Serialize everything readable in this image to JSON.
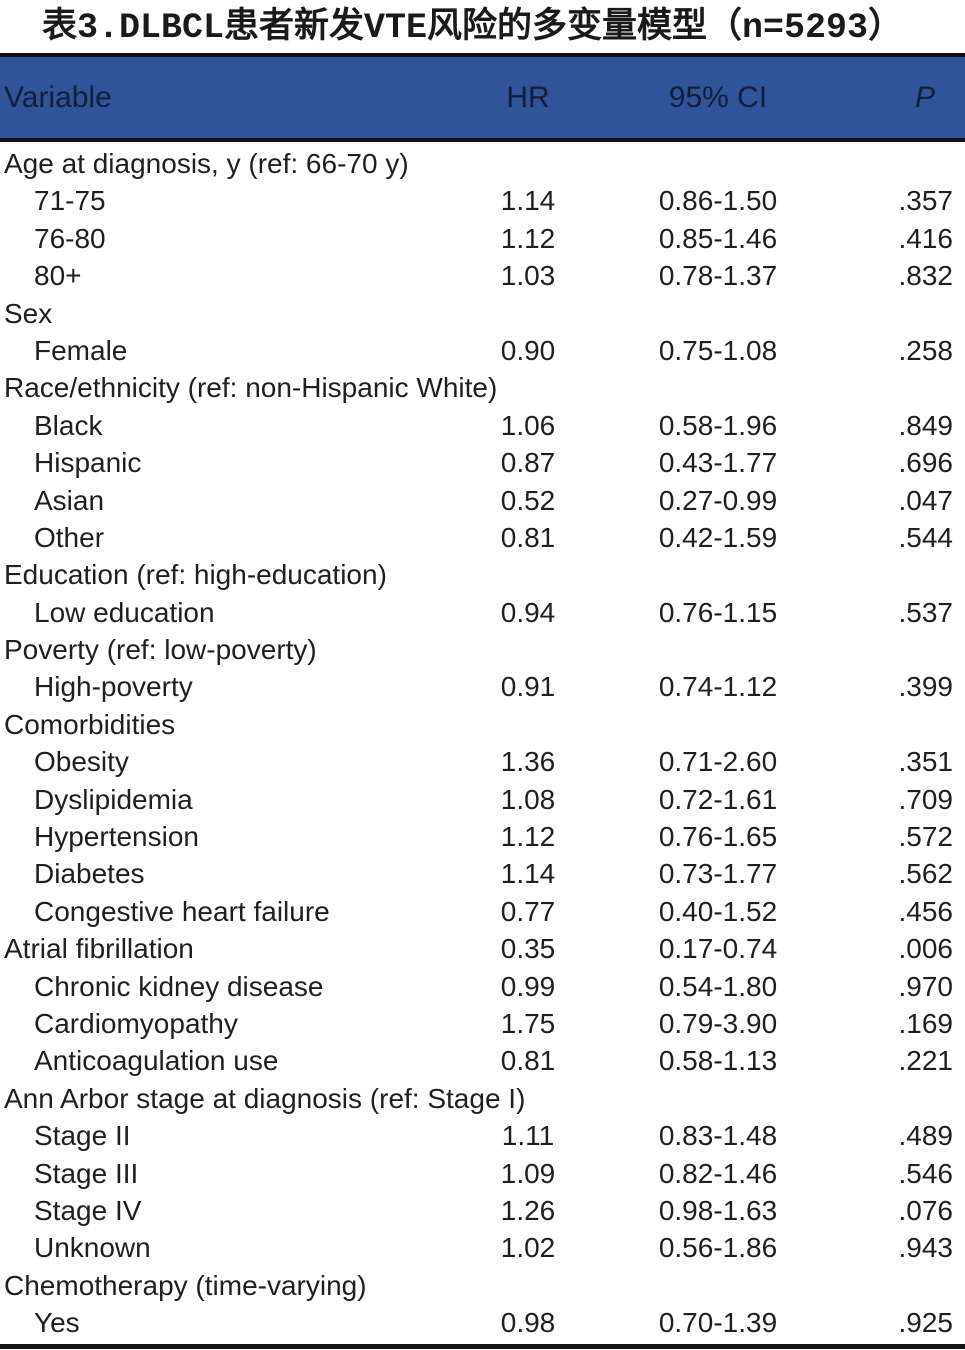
{
  "colors": {
    "header_bg": "#30549a",
    "header_text": "#131f38",
    "rule": "#121212",
    "title_text": "#1a1a1a",
    "body_text": "#1f1f1f"
  },
  "chart_data": {
    "type": "table",
    "title": "表3.DLBCL患者新发VTE风险的多变量模型（n=5293）",
    "subtitle": "",
    "n": "5293",
    "columns": [
      "Variable",
      "HR",
      "95% CI",
      "P"
    ],
    "layout": {
      "header_background": "blue-band",
      "grid": "off",
      "rules": "top, below-header, bottom"
    },
    "rows": [
      {
        "label": "Age at diagnosis, y (ref: 66-70 y)",
        "indent": false,
        "hr": "",
        "ci": "",
        "p": ""
      },
      {
        "label": "71-75",
        "indent": true,
        "hr": "1.14",
        "ci": "0.86-1.50",
        "p": ".357"
      },
      {
        "label": "76-80",
        "indent": true,
        "hr": "1.12",
        "ci": "0.85-1.46",
        "p": ".416"
      },
      {
        "label": "80+",
        "indent": true,
        "hr": "1.03",
        "ci": "0.78-1.37",
        "p": ".832"
      },
      {
        "label": "Sex",
        "indent": false,
        "hr": "",
        "ci": "",
        "p": ""
      },
      {
        "label": "Female",
        "indent": true,
        "hr": "0.90",
        "ci": "0.75-1.08",
        "p": ".258"
      },
      {
        "label": "Race/ethnicity (ref: non-Hispanic White)",
        "indent": false,
        "hr": "",
        "ci": "",
        "p": ""
      },
      {
        "label": "Black",
        "indent": true,
        "hr": "1.06",
        "ci": "0.58-1.96",
        "p": ".849"
      },
      {
        "label": "Hispanic",
        "indent": true,
        "hr": "0.87",
        "ci": "0.43-1.77",
        "p": ".696"
      },
      {
        "label": "Asian",
        "indent": true,
        "hr": "0.52",
        "ci": "0.27-0.99",
        "p": ".047"
      },
      {
        "label": "Other",
        "indent": true,
        "hr": "0.81",
        "ci": "0.42-1.59",
        "p": ".544"
      },
      {
        "label": "Education (ref: high-education)",
        "indent": false,
        "hr": "",
        "ci": "",
        "p": ""
      },
      {
        "label": "Low education",
        "indent": true,
        "hr": "0.94",
        "ci": "0.76-1.15",
        "p": ".537"
      },
      {
        "label": "Poverty (ref: low-poverty)",
        "indent": false,
        "hr": "",
        "ci": "",
        "p": ""
      },
      {
        "label": "High-poverty",
        "indent": true,
        "hr": "0.91",
        "ci": "0.74-1.12",
        "p": ".399"
      },
      {
        "label": "Comorbidities",
        "indent": false,
        "hr": "",
        "ci": "",
        "p": ""
      },
      {
        "label": "Obesity",
        "indent": true,
        "hr": "1.36",
        "ci": "0.71-2.60",
        "p": ".351"
      },
      {
        "label": "Dyslipidemia",
        "indent": true,
        "hr": "1.08",
        "ci": "0.72-1.61",
        "p": ".709"
      },
      {
        "label": "Hypertension",
        "indent": true,
        "hr": "1.12",
        "ci": "0.76-1.65",
        "p": ".572"
      },
      {
        "label": "Diabetes",
        "indent": true,
        "hr": "1.14",
        "ci": "0.73-1.77",
        "p": ".562"
      },
      {
        "label": "Congestive heart failure",
        "indent": true,
        "hr": "0.77",
        "ci": "0.40-1.52",
        "p": ".456"
      },
      {
        "label": "Atrial fibrillation",
        "indent": false,
        "hr": "0.35",
        "ci": "0.17-0.74",
        "p": ".006"
      },
      {
        "label": "Chronic kidney disease",
        "indent": true,
        "hr": "0.99",
        "ci": "0.54-1.80",
        "p": ".970"
      },
      {
        "label": "Cardiomyopathy",
        "indent": true,
        "hr": "1.75",
        "ci": "0.79-3.90",
        "p": ".169"
      },
      {
        "label": "Anticoagulation use",
        "indent": true,
        "hr": "0.81",
        "ci": "0.58-1.13",
        "p": ".221"
      },
      {
        "label": "Ann Arbor stage at diagnosis (ref: Stage I)",
        "indent": false,
        "hr": "",
        "ci": "",
        "p": ""
      },
      {
        "label": "Stage II",
        "indent": true,
        "hr": "1.11",
        "ci": "0.83-1.48",
        "p": ".489"
      },
      {
        "label": "Stage III",
        "indent": true,
        "hr": "1.09",
        "ci": "0.82-1.46",
        "p": ".546"
      },
      {
        "label": "Stage IV",
        "indent": true,
        "hr": "1.26",
        "ci": "0.98-1.63",
        "p": ".076"
      },
      {
        "label": "Unknown",
        "indent": true,
        "hr": "1.02",
        "ci": "0.56-1.86",
        "p": ".943"
      },
      {
        "label": "Chemotherapy (time-varying)",
        "indent": false,
        "hr": "",
        "ci": "",
        "p": ""
      },
      {
        "label": "Yes",
        "indent": true,
        "hr": "0.98",
        "ci": "0.70-1.39",
        "p": ".925"
      }
    ]
  }
}
